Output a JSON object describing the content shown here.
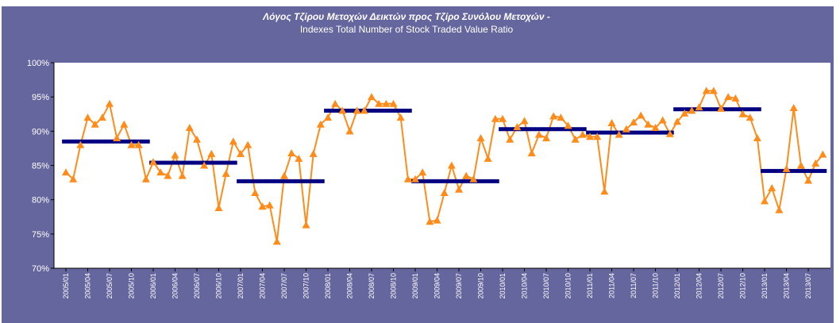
{
  "chart_data": {
    "type": "line",
    "title": "Λόγος Τζίρου Μετοχών Δεικτών προς Τζίρο Συνόλου Μετοχών -",
    "subtitle": "Indexes Total Number of Stock Traded Value Ratio",
    "categories": [
      "2005/01",
      null,
      null,
      "2005/04",
      null,
      null,
      "2005/07",
      null,
      null,
      "2005/10",
      null,
      null,
      "2006/01",
      null,
      null,
      "2006/04",
      null,
      null,
      "2006/07",
      null,
      null,
      "2006/10",
      null,
      null,
      "2007/01",
      null,
      null,
      "2007/04",
      null,
      null,
      "2007/07",
      null,
      null,
      "2007/10",
      null,
      null,
      "2008/01",
      null,
      null,
      "2008/04",
      null,
      null,
      "2008/07",
      null,
      null,
      "2008/10",
      null,
      null,
      "2009/01",
      null,
      null,
      "2009/04",
      null,
      null,
      "2009/07",
      null,
      null,
      "2009/10",
      null,
      null,
      "2010/01",
      null,
      null,
      "2010/04",
      null,
      null,
      "2010/07",
      null,
      null,
      "2010/10",
      null,
      null,
      "2011/01",
      null,
      null,
      "2011/04",
      null,
      null,
      "2011/07",
      null,
      null,
      "2011/10",
      null,
      null,
      "2012/01",
      null,
      null,
      "2012/04",
      null,
      null,
      "2012/07",
      null,
      null,
      "2012/10",
      null,
      null,
      "2013/01",
      null,
      null,
      "2013/04",
      null,
      null,
      "2013/07",
      null,
      null
    ],
    "series": [
      {
        "color": "#ff8c1a",
        "marker": "triangle",
        "values": [
          84,
          83,
          88,
          92,
          91,
          92,
          94,
          89,
          91,
          88,
          88,
          83,
          85.5,
          84,
          83.5,
          86.5,
          83.5,
          90.5,
          88.8,
          85,
          86.7,
          78.8,
          83.8,
          88.5,
          86.7,
          88,
          81,
          79,
          79.2,
          73.9,
          83.5,
          86.8,
          86,
          76.3,
          86.7,
          91,
          92,
          94,
          93,
          90,
          93,
          93,
          95,
          94,
          94,
          94,
          92,
          83,
          83,
          84,
          76.8,
          77,
          81,
          85,
          81.5,
          83.5,
          83,
          89,
          86,
          91.8,
          91.8,
          88.8,
          90.6,
          91.5,
          86.8,
          89.5,
          89,
          92.2,
          92,
          90.8,
          88.8,
          89.5,
          89.2,
          89.2,
          81.2,
          91.2,
          89.5,
          90.3,
          91.3,
          92.3,
          91,
          90.5,
          91.6,
          89.6,
          91.4,
          92.6,
          93,
          93.5,
          95.9,
          95.9,
          93.3,
          95,
          94.8,
          92.5,
          92,
          89,
          79.8,
          81.7,
          78.5,
          84.5,
          93.4,
          85,
          82.8,
          85.3,
          86.6
        ]
      },
      {
        "color": "#000080",
        "marker": "step",
        "values": [
          88.5,
          88.5,
          88.5,
          88.5,
          88.5,
          88.5,
          88.5,
          88.5,
          88.5,
          88.5,
          88.5,
          88.5,
          85.4,
          85.4,
          85.4,
          85.4,
          85.4,
          85.4,
          85.4,
          85.4,
          85.4,
          85.4,
          85.4,
          85.4,
          82.7,
          82.7,
          82.7,
          82.7,
          82.7,
          82.7,
          82.7,
          82.7,
          82.7,
          82.7,
          82.7,
          82.7,
          93,
          93,
          93,
          93,
          93,
          93,
          93,
          93,
          93,
          93,
          93,
          93,
          82.7,
          82.7,
          82.7,
          82.7,
          82.7,
          82.7,
          82.7,
          82.7,
          82.7,
          82.7,
          82.7,
          82.7,
          90.3,
          90.3,
          90.3,
          90.3,
          90.3,
          90.3,
          90.3,
          90.3,
          90.3,
          90.3,
          90.3,
          90.3,
          89.8,
          89.8,
          89.8,
          89.8,
          89.8,
          89.8,
          89.8,
          89.8,
          89.8,
          89.8,
          89.8,
          89.8,
          93.2,
          93.2,
          93.2,
          93.2,
          93.2,
          93.2,
          93.2,
          93.2,
          93.2,
          93.2,
          93.2,
          93.2,
          84.2,
          84.2,
          84.2,
          84.2,
          84.2,
          84.2,
          84.2,
          84.2,
          84.2
        ]
      }
    ],
    "ylim": [
      70,
      100
    ],
    "yticks": [
      {
        "value": 70,
        "label": "70%"
      },
      {
        "value": 75,
        "label": "75%"
      },
      {
        "value": 80,
        "label": "80%"
      },
      {
        "value": 85,
        "label": "85%"
      },
      {
        "value": 90,
        "label": "90%"
      },
      {
        "value": 95,
        "label": "95%"
      },
      {
        "value": 100,
        "label": "100%"
      }
    ],
    "grid": false
  }
}
